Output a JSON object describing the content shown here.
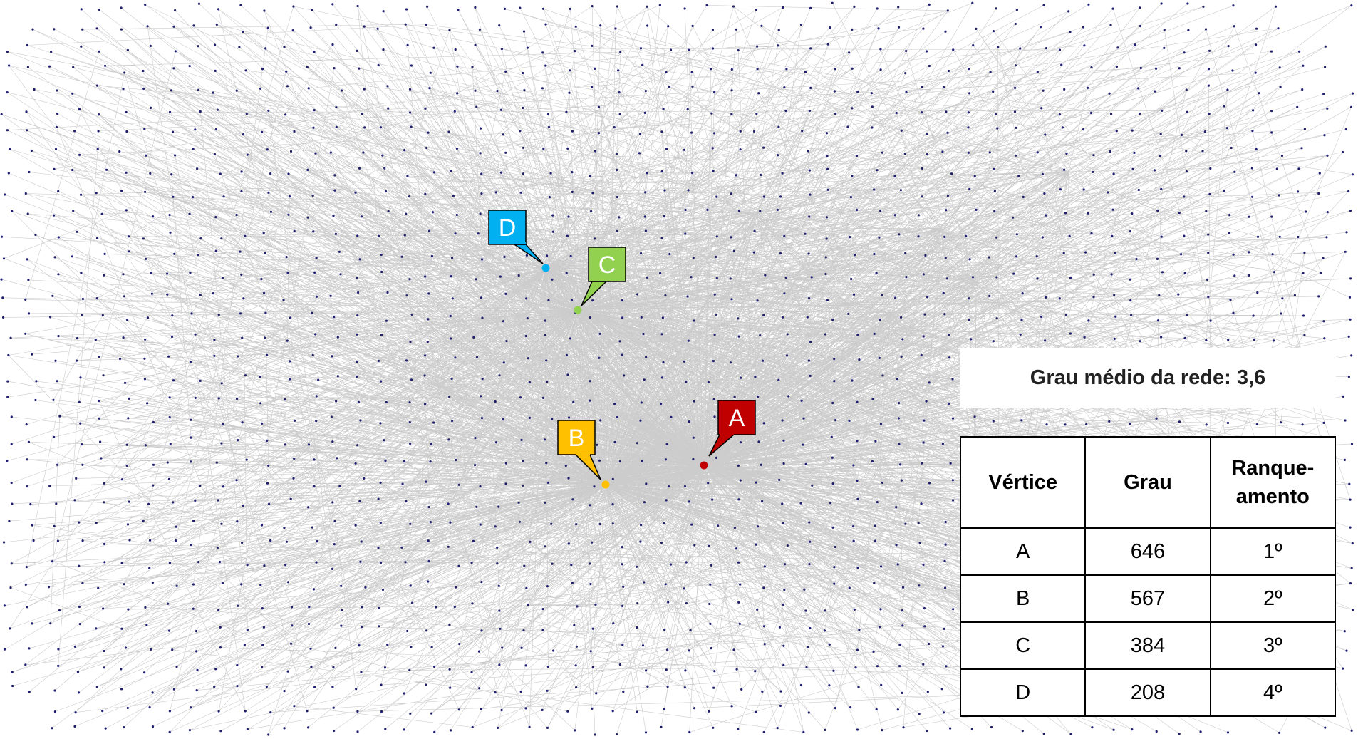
{
  "nodes_highlighted": [
    {
      "id": "A",
      "label": "A",
      "color": "#c00000",
      "degree": 646
    },
    {
      "id": "B",
      "label": "B",
      "color": "#ffc000",
      "degree": 567
    },
    {
      "id": "C",
      "label": "C",
      "color": "#92d050",
      "degree": 384
    },
    {
      "id": "D",
      "label": "D",
      "color": "#00b0f0",
      "degree": 208
    }
  ],
  "background_node_color": "#1f1f6e",
  "edge_color": "#6d6d6d",
  "summary": {
    "average_degree_text": "Grau médio da rede: 3,6"
  },
  "table": {
    "headers": {
      "vertex": "Vértice",
      "degree": "Grau",
      "rank": "Ranque-\namento"
    },
    "rows": [
      {
        "vertex": "A",
        "degree": "646",
        "rank": "1º"
      },
      {
        "vertex": "B",
        "degree": "567",
        "rank": "2º"
      },
      {
        "vertex": "C",
        "degree": "384",
        "rank": "3º"
      },
      {
        "vertex": "D",
        "degree": "208",
        "rank": "4º"
      }
    ]
  }
}
